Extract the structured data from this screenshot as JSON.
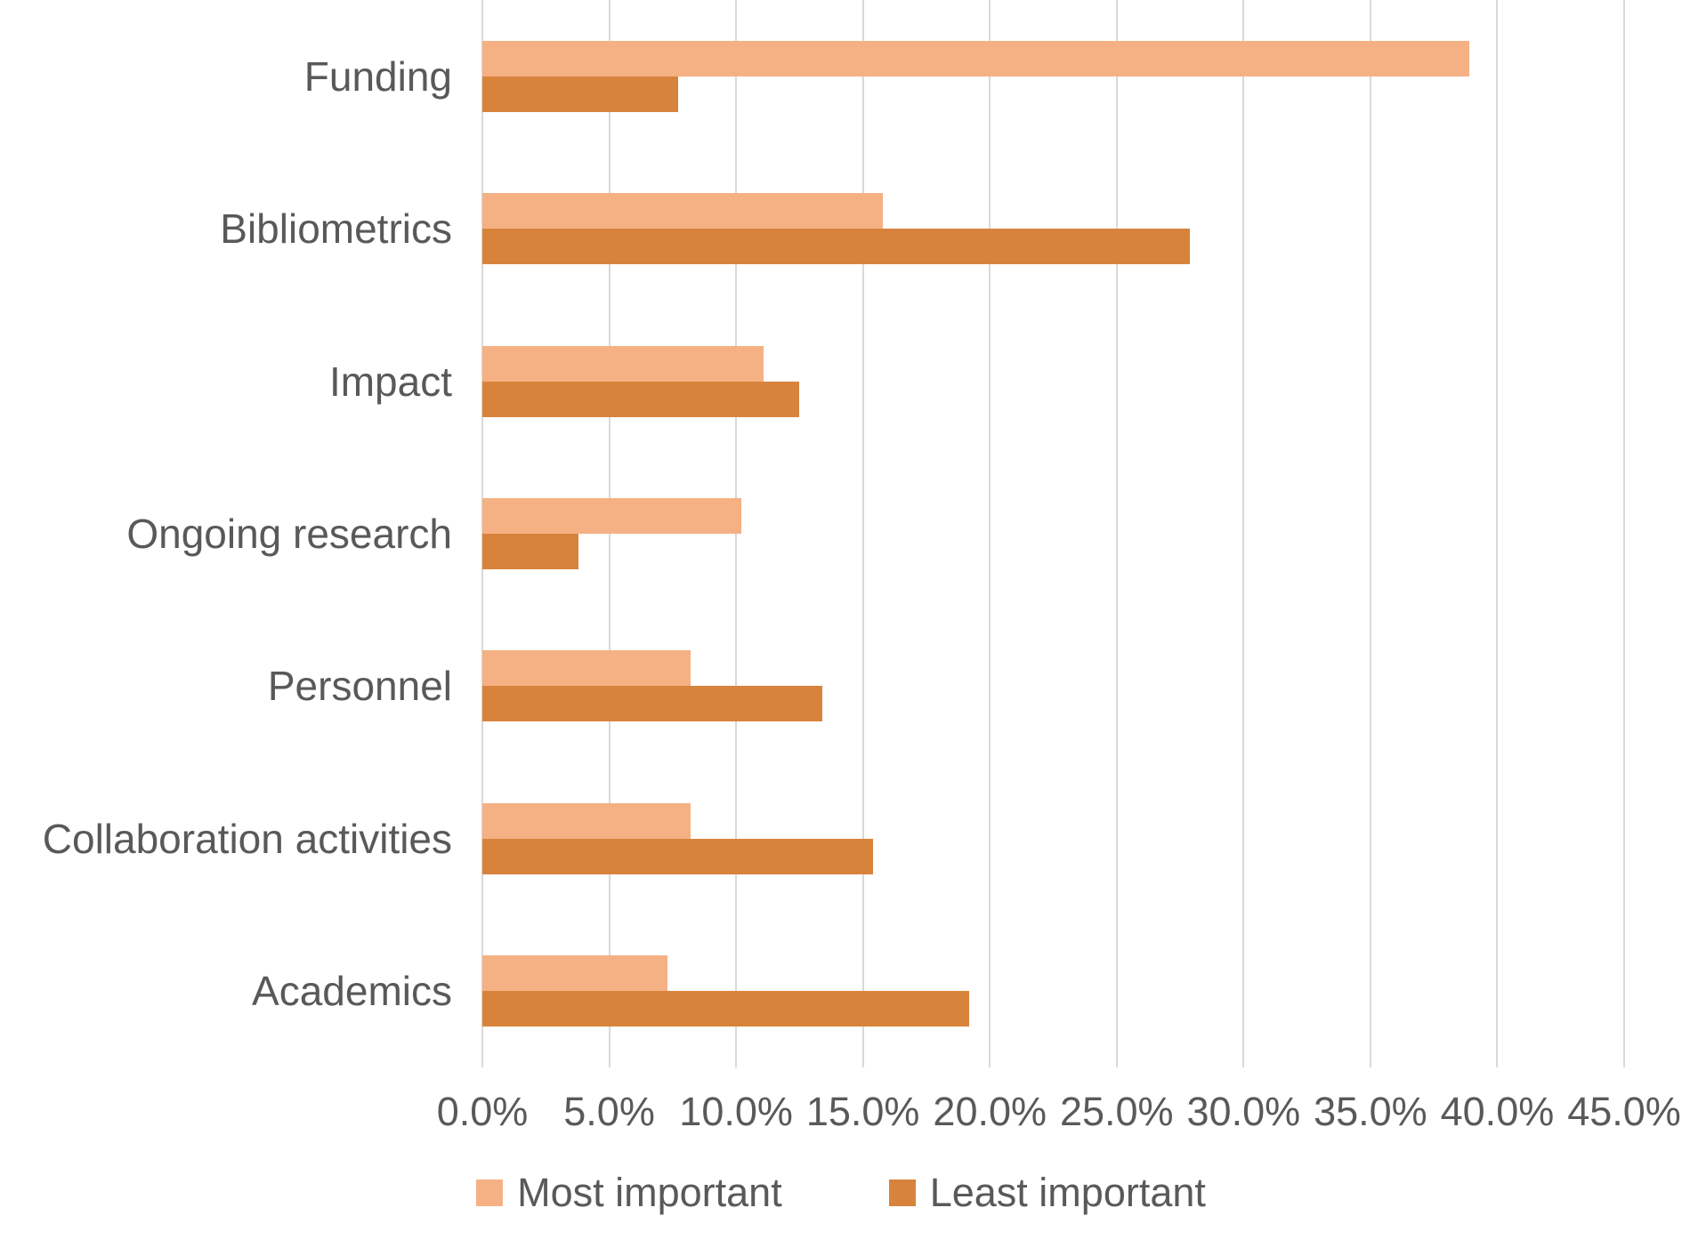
{
  "chart_data": {
    "type": "bar",
    "orientation": "horizontal",
    "title": "",
    "xlabel": "",
    "ylabel": "",
    "categories": [
      "Funding",
      "Bibliometrics",
      "Impact",
      "Ongoing research",
      "Personnel",
      "Collaboration activities",
      "Academics"
    ],
    "series": [
      {
        "name": "Most important",
        "color": "#F5B184",
        "values": [
          38.9,
          15.8,
          11.1,
          10.2,
          8.2,
          8.2,
          7.3
        ]
      },
      {
        "name": "Least important",
        "color": "#D8833C",
        "values": [
          7.7,
          27.9,
          12.5,
          3.8,
          13.4,
          15.4,
          19.2
        ]
      }
    ],
    "x_axis": {
      "min": 0,
      "max": 45,
      "tick_step": 5,
      "unit": "%",
      "tick_labels": [
        "0.0%",
        "5.0%",
        "10.0%",
        "15.0%",
        "20.0%",
        "25.0%",
        "30.0%",
        "35.0%",
        "40.0%",
        "45.0%"
      ]
    },
    "grid": true,
    "legend": {
      "position": "bottom",
      "entries": [
        "Most important",
        "Least important"
      ]
    },
    "colors": {
      "grid": "#D9D9D9",
      "text": "#595959",
      "background": "#FFFFFF"
    }
  }
}
